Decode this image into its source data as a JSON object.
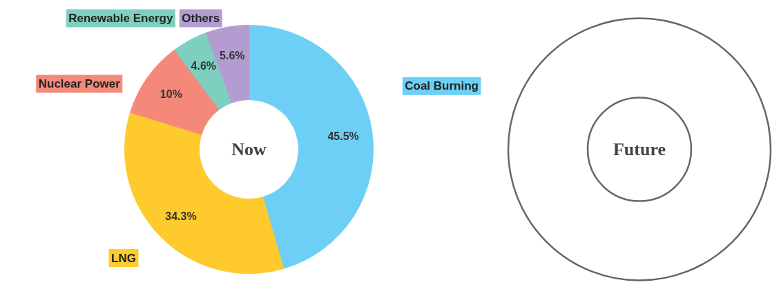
{
  "chart_data": [
    {
      "type": "donut",
      "title": "Now",
      "categories": [
        "Coal Burning",
        "LNG",
        "Nuclear Power",
        "Renewable Energy",
        "Others"
      ],
      "values": [
        45.5,
        34.3,
        10,
        4.6,
        5.6
      ],
      "colors": [
        "#6dcff6",
        "#ffca2c",
        "#f4897b",
        "#7ecfc0",
        "#b39dd0"
      ],
      "value_labels": [
        "45.5%",
        "34.3%",
        "10%",
        "4.6%",
        "5.6%"
      ]
    },
    {
      "type": "other",
      "title": "Future"
    }
  ]
}
